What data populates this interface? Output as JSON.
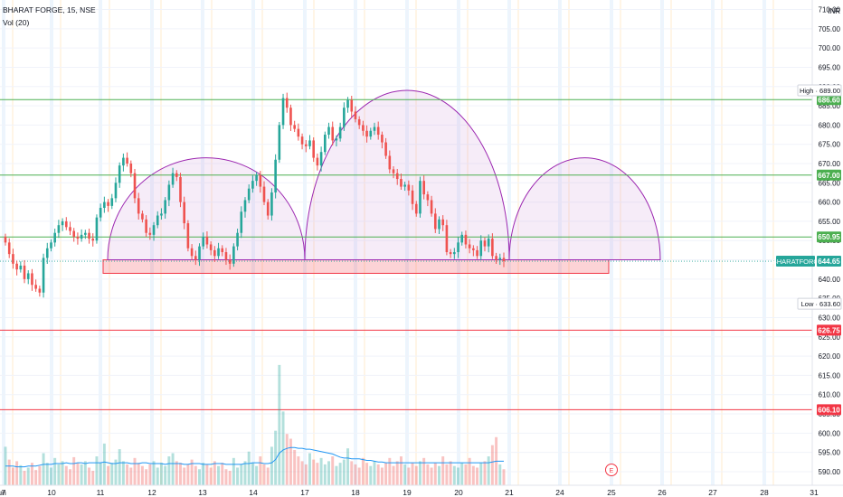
{
  "header": {
    "title": "BHARAT FORGE, 15, NSE",
    "volume_label": "Vol (20)"
  },
  "currency": "INR",
  "price_axis": {
    "ticks": [
      710,
      705,
      700,
      695,
      690,
      685,
      680,
      675,
      670,
      665,
      660,
      655,
      650,
      645,
      640,
      635,
      630,
      625,
      620,
      615,
      610,
      605,
      600,
      595,
      590
    ],
    "tick_labels": [
      "710.00",
      "705.00",
      "700.00",
      "695.00",
      "690.00",
      "685.00",
      "680.00",
      "675.00",
      "670.00",
      "665.00",
      "660.00",
      "655.00",
      "650.00",
      "645.00",
      "640.00",
      "635.00",
      "630.00",
      "625.00",
      "620.00",
      "615.00",
      "610.00",
      "605.00",
      "600.00",
      "595.00",
      "590.00"
    ]
  },
  "time_axis": {
    "labels": [
      "7",
      "10",
      "11",
      "12",
      "13",
      "14",
      "17",
      "18",
      "19",
      "20",
      "21",
      "24",
      "25",
      "26",
      "27",
      "28",
      "31",
      "Jun"
    ]
  },
  "event_marker": "E",
  "colors": {
    "up": "#26a69a",
    "down": "#ef5350",
    "resistance_line": "#4caf50",
    "support_line": "#f23645",
    "pattern_arc": "#9c27b0",
    "pattern_fill": "#f3e5f5",
    "neckline_box": "#f23645",
    "volume_ma": "#2196f3",
    "last_price_label": "#26a69a"
  },
  "chart_data": {
    "type": "candlestick",
    "symbol": "BHARATFORG",
    "interval": "15",
    "exchange": "NSE",
    "price_range": [
      586,
      712
    ],
    "last_price": 644.65,
    "high_marker": 689.0,
    "low_marker": 633.6,
    "horizontal_lines": [
      {
        "price": 686.6,
        "label": "686.60",
        "kind": "resistance"
      },
      {
        "price": 667.0,
        "label": "667.00",
        "kind": "resistance"
      },
      {
        "price": 650.95,
        "label": "650.95",
        "kind": "resistance"
      },
      {
        "price": 626.75,
        "label": "626.75",
        "kind": "support"
      },
      {
        "price": 606.1,
        "label": "606.10",
        "kind": "support"
      }
    ],
    "price_labels": {
      "high": "High  ·  689.00",
      "low": "Low  ·  633.60",
      "last_symbol": "BHARATFORG",
      "last": "644.65"
    },
    "neckline_zone": {
      "top": 645.0,
      "bottom": 641.5
    },
    "pattern": {
      "name": "inverse cup and handle / rounding arcs",
      "arcs": [
        {
          "start_date": "11",
          "end_date": "17",
          "base": 645.0,
          "peak": 671.5
        },
        {
          "start_date": "17",
          "end_date": "21",
          "base": 645.0,
          "peak": 689.0
        },
        {
          "start_date": "21",
          "end_date": "26",
          "base": 645.0,
          "peak": 671.5
        }
      ]
    },
    "closes": [
      649.5,
      646.5,
      644.0,
      642.5,
      643.5,
      640.0,
      641.5,
      638.5,
      637.5,
      636.5,
      645.5,
      648.0,
      649.5,
      652.0,
      654.0,
      655.0,
      653.5,
      652.5,
      651.0,
      650.5,
      651.5,
      652.0,
      650.5,
      650.0,
      656.0,
      658.5,
      660.0,
      659.0,
      661.0,
      665.0,
      669.5,
      671.5,
      670.0,
      667.5,
      661.0,
      657.0,
      655.5,
      652.0,
      651.5,
      654.0,
      656.5,
      657.0,
      660.5,
      664.5,
      667.5,
      666.5,
      660.0,
      654.5,
      648.0,
      646.0,
      645.0,
      648.5,
      651.0,
      649.0,
      647.5,
      646.0,
      648.0,
      647.0,
      645.0,
      644.0,
      648.5,
      652.0,
      657.5,
      660.5,
      663.5,
      665.5,
      667.0,
      664.0,
      660.0,
      656.5,
      662.5,
      671.0,
      680.0,
      687.0,
      684.5,
      680.0,
      679.0,
      677.0,
      675.0,
      674.5,
      676.0,
      671.5,
      669.5,
      673.0,
      677.5,
      679.5,
      676.0,
      676.5,
      679.5,
      684.5,
      686.5,
      683.5,
      681.5,
      680.0,
      678.5,
      677.0,
      678.5,
      679.5,
      677.5,
      675.5,
      672.0,
      668.5,
      667.5,
      666.0,
      664.0,
      664.5,
      663.0,
      659.5,
      657.0,
      665.5,
      662.0,
      660.5,
      657.0,
      653.0,
      655.5,
      654.0,
      647.0,
      646.5,
      647.0,
      649.5,
      651.5,
      649.0,
      648.0,
      647.5,
      646.0,
      650.0,
      648.5,
      650.5,
      646.0,
      645.0,
      645.5,
      644.65
    ],
    "volume_range": [
      0,
      160
    ],
    "volumes": [
      48,
      32,
      22,
      30,
      25,
      18,
      22,
      28,
      19,
      24,
      40,
      28,
      22,
      34,
      26,
      30,
      24,
      20,
      35,
      28,
      26,
      30,
      22,
      18,
      36,
      28,
      52,
      24,
      28,
      32,
      45,
      30,
      26,
      22,
      34,
      28,
      24,
      20,
      26,
      30,
      22,
      28,
      24,
      36,
      40,
      30,
      28,
      22,
      26,
      32,
      24,
      20,
      28,
      26,
      22,
      30,
      24,
      28,
      20,
      18,
      34,
      22,
      26,
      30,
      42,
      28,
      24,
      36,
      26,
      22,
      48,
      68,
      150,
      92,
      64,
      58,
      44,
      36,
      30,
      26,
      40,
      32,
      28,
      34,
      26,
      30,
      36,
      24,
      28,
      32,
      46,
      30,
      26,
      22,
      34,
      28,
      24,
      30,
      26,
      22,
      28,
      34,
      24,
      30,
      36,
      26,
      22,
      28,
      24,
      30,
      34,
      26,
      22,
      28,
      24,
      36,
      26,
      30,
      24,
      22,
      28,
      26,
      34,
      24,
      22,
      28,
      30,
      36,
      50,
      60,
      26,
      20
    ],
    "volume_ma": [
      24,
      24,
      24,
      23,
      23,
      23,
      24,
      24,
      24,
      25,
      26,
      26,
      26,
      27,
      27,
      27,
      28,
      27,
      27,
      28,
      28,
      27,
      28,
      28,
      28,
      28,
      29,
      28,
      27,
      27,
      28,
      28,
      28,
      27,
      27,
      27,
      28,
      28,
      27,
      27,
      27,
      27,
      26,
      27,
      27,
      27,
      27,
      26,
      26,
      27,
      27,
      27,
      26,
      26,
      26,
      27,
      27,
      27,
      26,
      26,
      26,
      26,
      26,
      27,
      27,
      28,
      28,
      28,
      27,
      27,
      28,
      32,
      40,
      44,
      46,
      47,
      47,
      46,
      46,
      45,
      45,
      44,
      43,
      42,
      41,
      40,
      39,
      37,
      35,
      34,
      34,
      33,
      33,
      33,
      32,
      31,
      31,
      30,
      29,
      29,
      28,
      28,
      28,
      28,
      28,
      28,
      28,
      28,
      28,
      28,
      28,
      28,
      28,
      28,
      28,
      28,
      28,
      28,
      28,
      28,
      28,
      28,
      28,
      28,
      28,
      28,
      28,
      28,
      29,
      30,
      30,
      30
    ]
  }
}
